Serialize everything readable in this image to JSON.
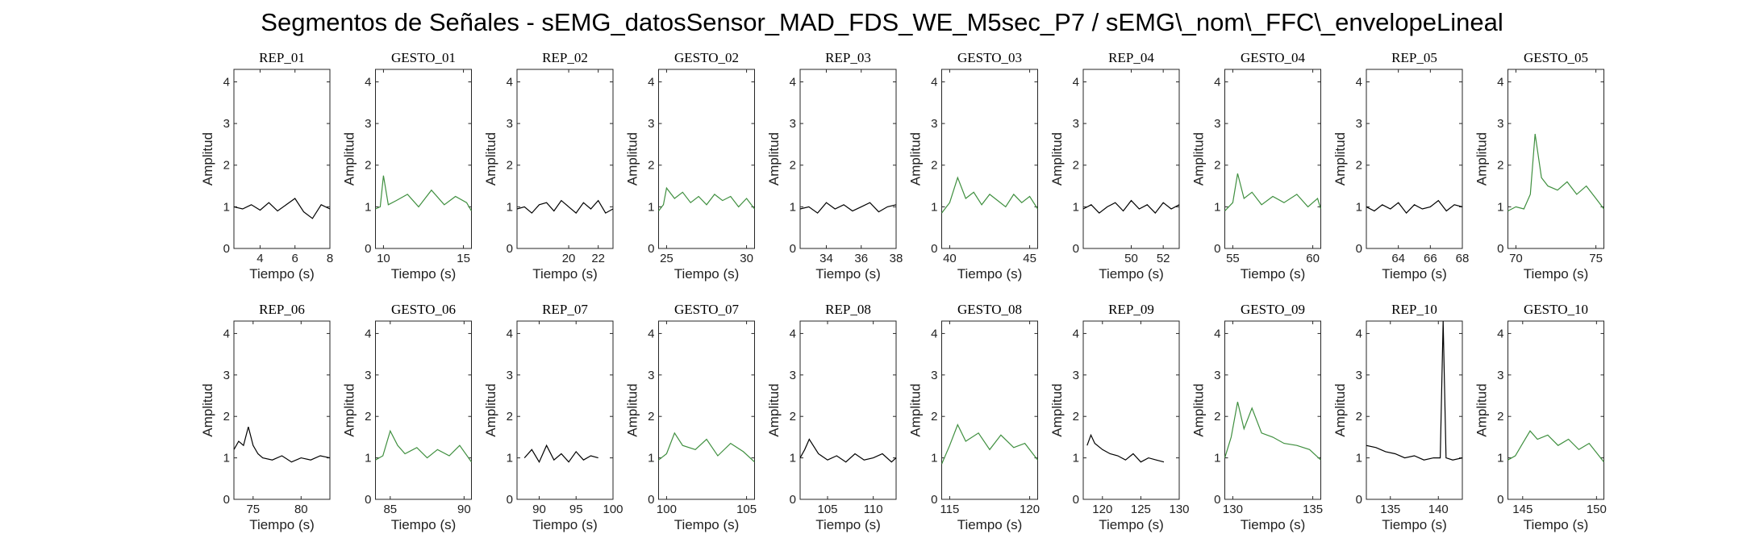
{
  "figure": {
    "title": "Segmentos de Señales - sEMG_datosSensor_MAD_FDS_WE_M5sec_P7 / sEMG\\_nom\\_FFC\\_envelopeLineal"
  },
  "colors": {
    "rep": "#000000",
    "gesto": "#3f8f3f",
    "axis": "#262626"
  },
  "chart_data": [
    {
      "type": "line",
      "title": "REP_01",
      "xlabel": "Tiempo (s)",
      "ylabel": "Amplitud",
      "xlim": [
        2.5,
        8
      ],
      "ylim": [
        0,
        4.3
      ],
      "xticks": [
        4,
        6,
        8
      ],
      "yticks": [
        0,
        1,
        2,
        3,
        4
      ],
      "color": "black",
      "series": [
        {
          "x": [
            2.5,
            3,
            3.5,
            4,
            4.5,
            5,
            5.5,
            6,
            6.5,
            7,
            7.5,
            8
          ],
          "y": [
            1.0,
            0.95,
            1.05,
            0.92,
            1.1,
            0.9,
            1.05,
            1.2,
            0.88,
            0.72,
            1.05,
            0.95
          ]
        }
      ]
    },
    {
      "type": "line",
      "title": "GESTO_01",
      "xlabel": "Tiempo (s)",
      "ylabel": "Amplitud",
      "xlim": [
        9.5,
        15.5
      ],
      "ylim": [
        0,
        4.3
      ],
      "xticks": [
        10,
        15
      ],
      "yticks": [
        0,
        1,
        2,
        3,
        4
      ],
      "color": "green",
      "series": [
        {
          "x": [
            9.5,
            9.8,
            10,
            10.3,
            10.8,
            11.5,
            12.2,
            13,
            13.8,
            14.5,
            15.2,
            15.5
          ],
          "y": [
            0.95,
            1.0,
            1.75,
            1.05,
            1.15,
            1.3,
            1.0,
            1.4,
            1.05,
            1.25,
            1.1,
            0.9
          ]
        }
      ]
    },
    {
      "type": "line",
      "title": "REP_02",
      "xlabel": "Tiempo (s)",
      "ylabel": "Amplitud",
      "xlim": [
        16.5,
        23
      ],
      "ylim": [
        0,
        4.3
      ],
      "xticks": [
        20,
        22
      ],
      "yticks": [
        0,
        1,
        2,
        3,
        4
      ],
      "color": "black",
      "series": [
        {
          "x": [
            16.5,
            17,
            17.5,
            18,
            18.5,
            19,
            19.5,
            20,
            20.5,
            21,
            21.5,
            22,
            22.5,
            23
          ],
          "y": [
            0.95,
            1.0,
            0.85,
            1.05,
            1.1,
            0.9,
            1.15,
            1.0,
            0.85,
            1.1,
            0.95,
            1.15,
            0.85,
            0.95
          ]
        }
      ]
    },
    {
      "type": "line",
      "title": "GESTO_02",
      "xlabel": "Tiempo (s)",
      "ylabel": "Amplitud",
      "xlim": [
        24.5,
        30.5
      ],
      "ylim": [
        0,
        4.3
      ],
      "xticks": [
        25,
        30
      ],
      "yticks": [
        0,
        1,
        2,
        3,
        4
      ],
      "color": "green",
      "series": [
        {
          "x": [
            24.5,
            24.8,
            25,
            25.5,
            26,
            26.5,
            27,
            27.5,
            28,
            28.5,
            29,
            29.5,
            30,
            30.5
          ],
          "y": [
            0.9,
            1.05,
            1.45,
            1.2,
            1.35,
            1.1,
            1.25,
            1.05,
            1.3,
            1.15,
            1.25,
            1.0,
            1.2,
            0.95
          ]
        }
      ]
    },
    {
      "type": "line",
      "title": "REP_03",
      "xlabel": "Tiempo (s)",
      "ylabel": "Amplitud",
      "xlim": [
        32.5,
        38
      ],
      "ylim": [
        0,
        4.3
      ],
      "xticks": [
        34,
        36,
        38
      ],
      "yticks": [
        0,
        1,
        2,
        3,
        4
      ],
      "color": "black",
      "series": [
        {
          "x": [
            32.5,
            33,
            33.5,
            34,
            34.5,
            35,
            35.5,
            36,
            36.5,
            37,
            37.5,
            38
          ],
          "y": [
            0.95,
            1.0,
            0.85,
            1.1,
            0.95,
            1.05,
            0.9,
            1.0,
            1.1,
            0.88,
            1.0,
            1.05
          ]
        }
      ]
    },
    {
      "type": "line",
      "title": "GESTO_03",
      "xlabel": "Tiempo (s)",
      "ylabel": "Amplitud",
      "xlim": [
        39.5,
        45.5
      ],
      "ylim": [
        0,
        4.3
      ],
      "xticks": [
        40,
        45
      ],
      "yticks": [
        0,
        1,
        2,
        3,
        4
      ],
      "color": "green",
      "series": [
        {
          "x": [
            39.5,
            40,
            40.5,
            41,
            41.5,
            42,
            42.5,
            43,
            43.5,
            44,
            44.5,
            45,
            45.5
          ],
          "y": [
            0.85,
            1.1,
            1.7,
            1.2,
            1.35,
            1.05,
            1.3,
            1.15,
            1.0,
            1.3,
            1.1,
            1.25,
            0.95
          ]
        }
      ]
    },
    {
      "type": "line",
      "title": "REP_04",
      "xlabel": "Tiempo (s)",
      "ylabel": "Amplitud",
      "xlim": [
        47,
        53
      ],
      "ylim": [
        0,
        4.3
      ],
      "xticks": [
        50,
        52
      ],
      "yticks": [
        0,
        1,
        2,
        3,
        4
      ],
      "color": "black",
      "series": [
        {
          "x": [
            47,
            47.5,
            48,
            48.5,
            49,
            49.5,
            50,
            50.5,
            51,
            51.5,
            52,
            52.5,
            53
          ],
          "y": [
            0.95,
            1.05,
            0.85,
            1.0,
            1.1,
            0.9,
            1.15,
            0.95,
            1.05,
            0.85,
            1.1,
            0.95,
            1.05
          ]
        }
      ]
    },
    {
      "type": "line",
      "title": "GESTO_04",
      "xlabel": "Tiempo (s)",
      "ylabel": "Amplitud",
      "xlim": [
        54.5,
        60.5
      ],
      "ylim": [
        0,
        4.3
      ],
      "xticks": [
        55,
        60
      ],
      "yticks": [
        0,
        1,
        2,
        3,
        4
      ],
      "color": "green",
      "series": [
        {
          "x": [
            54.5,
            55,
            55.3,
            55.7,
            56.2,
            56.8,
            57.5,
            58.2,
            59,
            59.7,
            60.3,
            60.5
          ],
          "y": [
            0.9,
            1.1,
            1.8,
            1.2,
            1.35,
            1.05,
            1.25,
            1.1,
            1.3,
            1.0,
            1.2,
            0.95
          ]
        }
      ]
    },
    {
      "type": "line",
      "title": "REP_05",
      "xlabel": "Tiempo (s)",
      "ylabel": "Amplitud",
      "xlim": [
        62,
        68
      ],
      "ylim": [
        0,
        4.3
      ],
      "xticks": [
        64,
        66,
        68
      ],
      "yticks": [
        0,
        1,
        2,
        3,
        4
      ],
      "color": "black",
      "series": [
        {
          "x": [
            62,
            62.5,
            63,
            63.5,
            64,
            64.5,
            65,
            65.5,
            66,
            66.5,
            67,
            67.5,
            68
          ],
          "y": [
            1.0,
            0.9,
            1.05,
            0.95,
            1.1,
            0.85,
            1.05,
            0.95,
            1.0,
            1.15,
            0.9,
            1.05,
            1.0
          ]
        }
      ]
    },
    {
      "type": "line",
      "title": "GESTO_05",
      "xlabel": "Tiempo (s)",
      "ylabel": "Amplitud",
      "xlim": [
        69.5,
        75.5
      ],
      "ylim": [
        0,
        4.3
      ],
      "xticks": [
        70,
        75
      ],
      "yticks": [
        0,
        1,
        2,
        3,
        4
      ],
      "color": "green",
      "series": [
        {
          "x": [
            69.5,
            70,
            70.5,
            70.9,
            71.2,
            71.6,
            72,
            72.6,
            73.2,
            73.8,
            74.4,
            75,
            75.5
          ],
          "y": [
            0.9,
            1.0,
            0.95,
            1.3,
            2.75,
            1.7,
            1.5,
            1.4,
            1.6,
            1.3,
            1.5,
            1.2,
            0.95
          ]
        }
      ]
    },
    {
      "type": "line",
      "title": "REP_06",
      "xlabel": "Tiempo (s)",
      "ylabel": "Amplitud",
      "xlim": [
        73,
        83
      ],
      "ylim": [
        0,
        4.3
      ],
      "xticks": [
        75,
        80
      ],
      "yticks": [
        0,
        1,
        2,
        3,
        4
      ],
      "color": "black",
      "series": [
        {
          "x": [
            73,
            73.5,
            74,
            74.5,
            75,
            75.5,
            76,
            77,
            78,
            79,
            80,
            81,
            82,
            83
          ],
          "y": [
            1.2,
            1.4,
            1.3,
            1.75,
            1.3,
            1.1,
            1.0,
            0.95,
            1.05,
            0.9,
            1.0,
            0.95,
            1.05,
            1.0
          ]
        }
      ]
    },
    {
      "type": "line",
      "title": "GESTO_06",
      "xlabel": "Tiempo (s)",
      "ylabel": "Amplitud",
      "xlim": [
        84,
        90.5
      ],
      "ylim": [
        0,
        4.3
      ],
      "xticks": [
        85,
        90
      ],
      "yticks": [
        0,
        1,
        2,
        3,
        4
      ],
      "color": "green",
      "series": [
        {
          "x": [
            84,
            84.5,
            85,
            85.5,
            86,
            86.8,
            87.5,
            88.2,
            89,
            89.7,
            90.5
          ],
          "y": [
            0.95,
            1.05,
            1.65,
            1.3,
            1.1,
            1.25,
            1.0,
            1.2,
            1.05,
            1.3,
            0.9
          ]
        }
      ]
    },
    {
      "type": "line",
      "title": "REP_07",
      "xlabel": "Tiempo (s)",
      "ylabel": "Amplitud",
      "xlim": [
        87,
        100
      ],
      "ylim": [
        0,
        4.3
      ],
      "xticks": [
        90,
        95,
        100
      ],
      "yticks": [
        0,
        1,
        2,
        3,
        4
      ],
      "color": "black",
      "series": [
        {
          "x": [
            88,
            89,
            90,
            91,
            92,
            93,
            94,
            95,
            96,
            97,
            98
          ],
          "y": [
            1.0,
            1.2,
            0.9,
            1.3,
            0.95,
            1.1,
            0.9,
            1.15,
            0.95,
            1.05,
            1.0
          ]
        }
      ]
    },
    {
      "type": "line",
      "title": "GESTO_07",
      "xlabel": "Tiempo (s)",
      "ylabel": "Amplitud",
      "xlim": [
        99.5,
        105.5
      ],
      "ylim": [
        0,
        4.3
      ],
      "xticks": [
        100,
        105
      ],
      "yticks": [
        0,
        1,
        2,
        3,
        4
      ],
      "color": "green",
      "series": [
        {
          "x": [
            99.5,
            100,
            100.5,
            101,
            101.8,
            102.5,
            103.2,
            104,
            104.8,
            105.5
          ],
          "y": [
            0.95,
            1.1,
            1.6,
            1.3,
            1.2,
            1.45,
            1.05,
            1.35,
            1.15,
            0.9
          ]
        }
      ]
    },
    {
      "type": "line",
      "title": "REP_08",
      "xlabel": "Tiempo (s)",
      "ylabel": "Amplitud",
      "xlim": [
        102,
        112.5
      ],
      "ylim": [
        0,
        4.3
      ],
      "xticks": [
        105,
        110
      ],
      "yticks": [
        0,
        1,
        2,
        3,
        4
      ],
      "color": "black",
      "series": [
        {
          "x": [
            102,
            102.5,
            103,
            104,
            105,
            106,
            107,
            108,
            109,
            110,
            111,
            112,
            112.5
          ],
          "y": [
            1.0,
            1.2,
            1.45,
            1.1,
            0.95,
            1.05,
            0.9,
            1.1,
            0.95,
            1.0,
            1.1,
            0.9,
            1.0
          ]
        }
      ]
    },
    {
      "type": "line",
      "title": "GESTO_08",
      "xlabel": "Tiempo (s)",
      "ylabel": "Amplitud",
      "xlim": [
        114.5,
        120.5
      ],
      "ylim": [
        0,
        4.3
      ],
      "xticks": [
        115,
        120
      ],
      "yticks": [
        0,
        1,
        2,
        3,
        4
      ],
      "color": "green",
      "series": [
        {
          "x": [
            114.5,
            115,
            115.5,
            116,
            116.8,
            117.5,
            118.2,
            119,
            119.7,
            120.5
          ],
          "y": [
            0.85,
            1.3,
            1.8,
            1.4,
            1.6,
            1.2,
            1.55,
            1.25,
            1.35,
            0.95
          ]
        }
      ]
    },
    {
      "type": "line",
      "title": "REP_09",
      "xlabel": "Tiempo (s)",
      "ylabel": "Amplitud",
      "xlim": [
        117.5,
        130
      ],
      "ylim": [
        0,
        4.3
      ],
      "xticks": [
        120,
        125,
        130
      ],
      "yticks": [
        0,
        1,
        2,
        3,
        4
      ],
      "color": "black",
      "series": [
        {
          "x": [
            118,
            118.5,
            119,
            120,
            121,
            122,
            123,
            124,
            125,
            126,
            127,
            128
          ],
          "y": [
            1.3,
            1.55,
            1.35,
            1.2,
            1.1,
            1.05,
            0.95,
            1.1,
            0.9,
            1.0,
            0.95,
            0.9
          ]
        }
      ]
    },
    {
      "type": "line",
      "title": "GESTO_09",
      "xlabel": "Tiempo (s)",
      "ylabel": "Amplitud",
      "xlim": [
        129.5,
        135.5
      ],
      "ylim": [
        0,
        4.3
      ],
      "xticks": [
        130,
        135
      ],
      "yticks": [
        0,
        1,
        2,
        3,
        4
      ],
      "color": "green",
      "series": [
        {
          "x": [
            129.5,
            129.9,
            130.3,
            130.7,
            131.2,
            131.8,
            132.5,
            133.2,
            134,
            134.8,
            135.5
          ],
          "y": [
            1.0,
            1.5,
            2.35,
            1.7,
            2.2,
            1.6,
            1.5,
            1.35,
            1.3,
            1.2,
            0.95
          ]
        }
      ]
    },
    {
      "type": "line",
      "title": "REP_10",
      "xlabel": "Tiempo (s)",
      "ylabel": "Amplitud",
      "xlim": [
        132.5,
        142.5
      ],
      "ylim": [
        0,
        4.3
      ],
      "xticks": [
        135,
        140
      ],
      "yticks": [
        0,
        1,
        2,
        3,
        4
      ],
      "color": "black",
      "series": [
        {
          "x": [
            132.5,
            133.5,
            134.5,
            135.5,
            136.5,
            137.5,
            138.5,
            139.5,
            140.2,
            140.5,
            140.8,
            141.5,
            142.5
          ],
          "y": [
            1.3,
            1.25,
            1.15,
            1.1,
            1.0,
            1.05,
            0.95,
            1.0,
            1.0,
            4.3,
            1.0,
            0.95,
            1.0
          ]
        }
      ]
    },
    {
      "type": "line",
      "title": "GESTO_10",
      "xlabel": "Tiempo (s)",
      "ylabel": "Amplitud",
      "xlim": [
        144,
        150.5
      ],
      "ylim": [
        0,
        4.3
      ],
      "xticks": [
        145,
        150
      ],
      "yticks": [
        0,
        1,
        2,
        3,
        4
      ],
      "color": "green",
      "series": [
        {
          "x": [
            144,
            144.5,
            145,
            145.5,
            146,
            146.7,
            147.4,
            148.1,
            148.8,
            149.5,
            150.5
          ],
          "y": [
            0.95,
            1.05,
            1.35,
            1.65,
            1.45,
            1.55,
            1.3,
            1.45,
            1.2,
            1.35,
            0.9
          ]
        }
      ]
    }
  ]
}
